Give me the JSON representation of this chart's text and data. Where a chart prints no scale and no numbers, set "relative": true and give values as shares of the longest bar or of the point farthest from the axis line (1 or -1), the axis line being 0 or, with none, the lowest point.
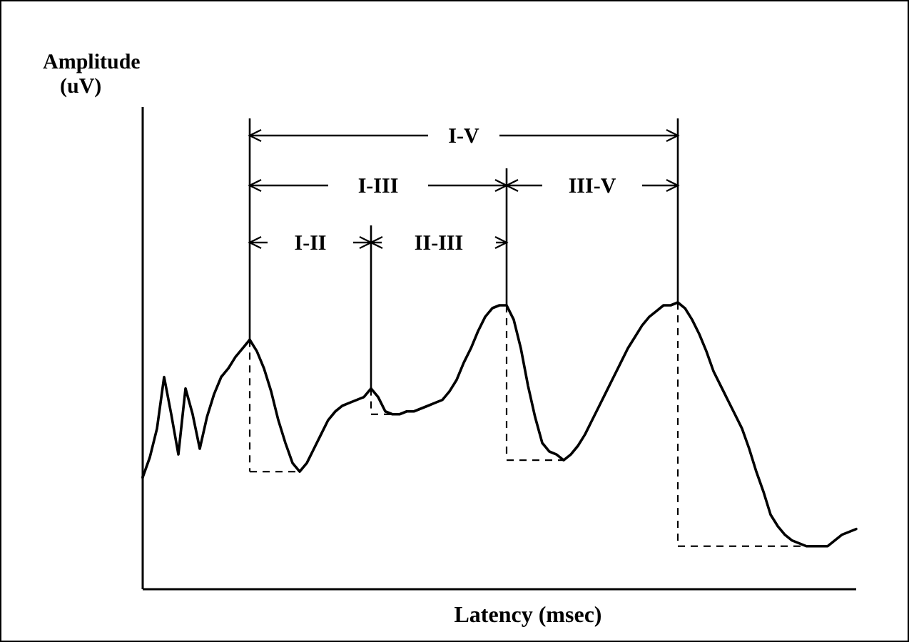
{
  "chart_data": {
    "type": "line",
    "relative": true,
    "xlabel": "Latency (msec)",
    "marker": "none",
    "categories": [
      null,
      null,
      null,
      null,
      null,
      null,
      null,
      null,
      null,
      null,
      null,
      null,
      null,
      null,
      null,
      null,
      null,
      null,
      null,
      null,
      null,
      null,
      null,
      null,
      null,
      null,
      null,
      null,
      null,
      null,
      null,
      null,
      null,
      null,
      null,
      null,
      null,
      null,
      null,
      null,
      null,
      null,
      null,
      null,
      null,
      null,
      null,
      null,
      null,
      null,
      null,
      null,
      null,
      null,
      null,
      null,
      null,
      null,
      null,
      null,
      null,
      null,
      null,
      null,
      null,
      null,
      null,
      null,
      null,
      null,
      null,
      null,
      null,
      null,
      null,
      null,
      null,
      null,
      null,
      null,
      null,
      null,
      null,
      null,
      null,
      null,
      null,
      null,
      null,
      null,
      null,
      null,
      null,
      null,
      null,
      null,
      null,
      null,
      null,
      null,
      null
    ],
    "series": [
      {
        "color": "#000000",
        "values": [
          0.39,
          0.46,
          0.56,
          0.74,
          0.61,
          0.47,
          0.7,
          0.61,
          0.49,
          0.6,
          0.68,
          0.74,
          0.77,
          0.81,
          0.84,
          0.87,
          0.83,
          0.77,
          0.69,
          0.59,
          0.51,
          0.44,
          0.41,
          0.44,
          0.49,
          0.54,
          0.59,
          0.62,
          0.64,
          0.65,
          0.66,
          0.67,
          0.7,
          0.67,
          0.62,
          0.61,
          0.61,
          0.62,
          0.62,
          0.63,
          0.64,
          0.65,
          0.66,
          0.69,
          0.73,
          0.79,
          0.84,
          0.9,
          0.95,
          0.98,
          0.99,
          0.99,
          0.94,
          0.84,
          0.71,
          0.6,
          0.51,
          0.48,
          0.47,
          0.45,
          0.47,
          0.5,
          0.54,
          0.59,
          0.64,
          0.69,
          0.74,
          0.79,
          0.84,
          0.88,
          0.92,
          0.95,
          0.97,
          0.99,
          0.99,
          1,
          0.98,
          0.94,
          0.89,
          0.83,
          0.76,
          0.71,
          0.66,
          0.61,
          0.56,
          0.49,
          0.41,
          0.34,
          0.26,
          0.22,
          0.19,
          0.17,
          0.16,
          0.15,
          0.15,
          0.15,
          0.15,
          0.17,
          0.19,
          0.2,
          0.21
        ]
      }
    ],
    "annotations": [
      "I-V",
      "I-III",
      "III-V",
      "I-II",
      "II-III",
      "Amplitude (uV)"
    ]
  }
}
